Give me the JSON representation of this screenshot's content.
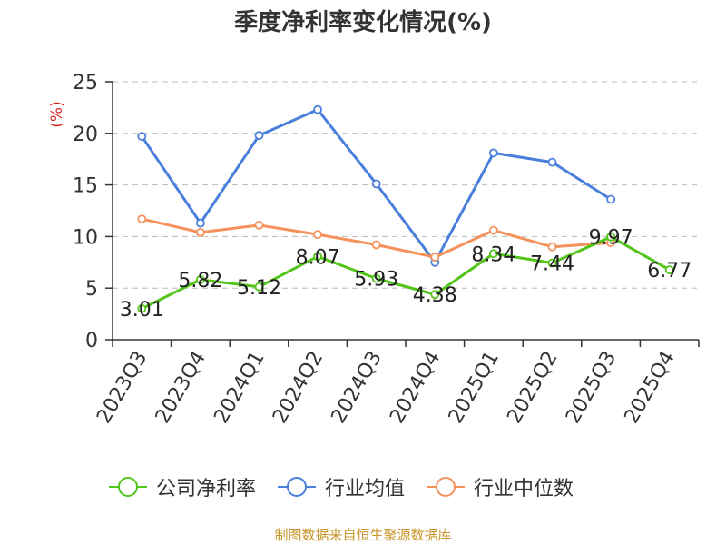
{
  "title": "季度净利率变化情况(%)",
  "source": "制图数据来自恒生聚源数据库",
  "colors": {
    "company": "#52c41a",
    "industry_avg": "#4a7fdc",
    "industry_median": "#f5915a",
    "ylabel": "#d62728",
    "axis": "#333333",
    "grid": "#bbbbbb"
  },
  "chart_data": {
    "type": "line",
    "title": "季度净利率变化情况(%)",
    "ylabel": "(%)",
    "xlabel": "",
    "ylim": [
      0,
      25
    ],
    "yticks": [
      0,
      5,
      10,
      15,
      20,
      25
    ],
    "grid": true,
    "legend_position": "bottom",
    "categories": [
      "2023Q3",
      "2023Q4",
      "2024Q1",
      "2024Q2",
      "2024Q3",
      "2024Q4",
      "2025Q1",
      "2025Q2",
      "2025Q3",
      "2025Q4"
    ],
    "series": [
      {
        "name": "公司净利率",
        "values": [
          3.01,
          5.82,
          5.12,
          8.07,
          5.93,
          4.38,
          8.34,
          7.44,
          9.97,
          6.77
        ],
        "labels": [
          "3.01",
          "5.82",
          "5.12",
          "8.07",
          "5.93",
          "4.38",
          "8.34",
          "7.44",
          "9.97",
          "6.77"
        ]
      },
      {
        "name": "行业均值",
        "values": [
          19.7,
          11.3,
          19.8,
          22.3,
          15.1,
          7.5,
          18.1,
          17.2,
          13.6,
          null
        ]
      },
      {
        "name": "行业中位数",
        "values": [
          11.7,
          10.4,
          11.1,
          10.2,
          9.2,
          8.0,
          10.6,
          9.0,
          9.4,
          null
        ]
      }
    ]
  }
}
